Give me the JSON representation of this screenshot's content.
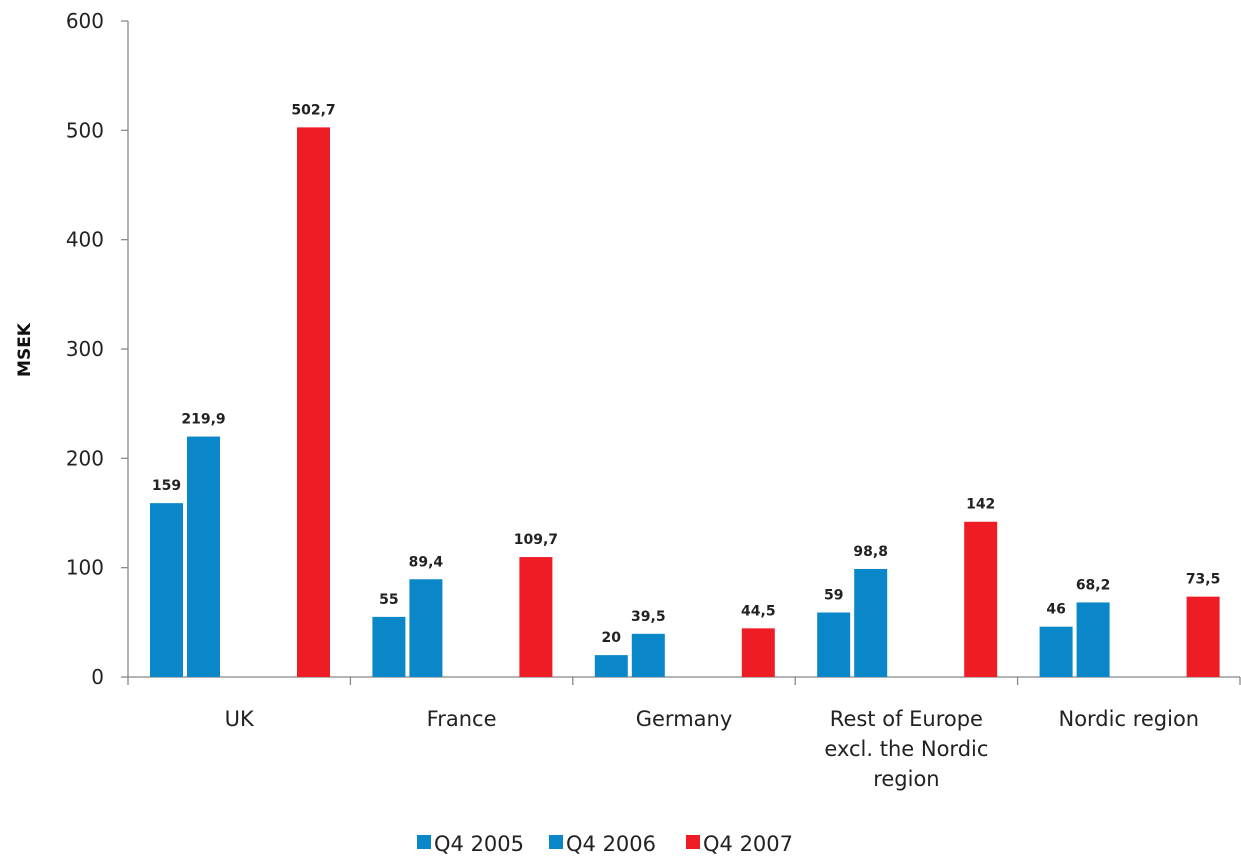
{
  "chart_data": {
    "type": "bar",
    "title": "",
    "xlabel": "",
    "ylabel": "MSEK",
    "ylim": [
      0,
      600
    ],
    "yticks": [
      0,
      100,
      200,
      300,
      400,
      500,
      600
    ],
    "grid": false,
    "legend_position": "bottom",
    "categories": [
      [
        "UK"
      ],
      [
        "France"
      ],
      [
        "Germany"
      ],
      [
        "Rest of Europe",
        "excl. the Nordic",
        "region"
      ],
      [
        "Nordic region"
      ]
    ],
    "series": [
      {
        "name": "Q4 2005",
        "color": "#0a87c8",
        "values": [
          159,
          55,
          20,
          59,
          46
        ],
        "labels": [
          "159",
          "55",
          "20",
          "59",
          "46"
        ]
      },
      {
        "name": "Q4 2006",
        "color": "#0a87c8",
        "values": [
          219.9,
          89.4,
          39.5,
          98.8,
          68.2
        ],
        "labels": [
          "219,9",
          "89,4",
          "39,5",
          "98,8",
          "68,2"
        ]
      },
      {
        "name": "Q4 2007",
        "color": "#ee1c25",
        "values": [
          502.7,
          109.7,
          44.5,
          142,
          73.5
        ],
        "labels": [
          "502,7",
          "109,7",
          "44,5",
          "142",
          "73,5"
        ]
      }
    ]
  }
}
